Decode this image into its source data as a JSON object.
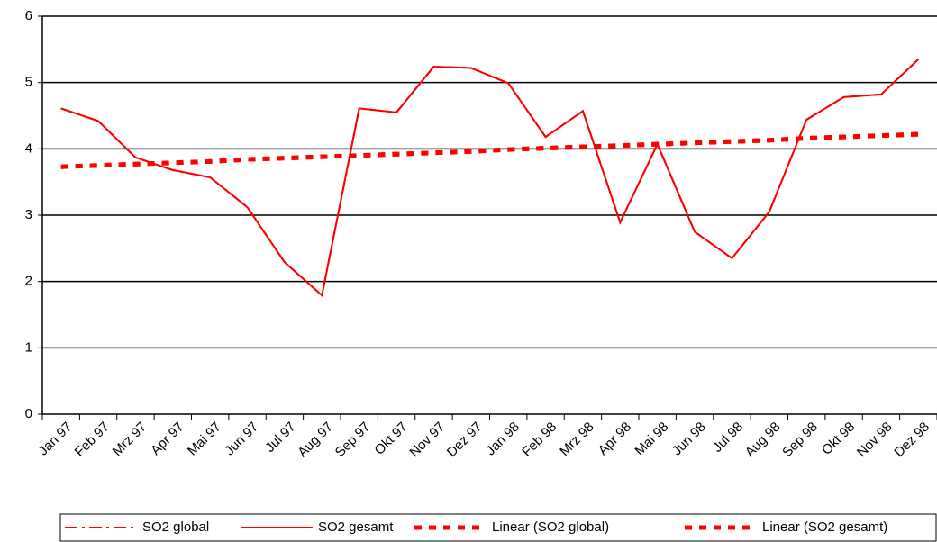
{
  "chart_data": {
    "type": "line",
    "categories": [
      "Jan 97",
      "Feb 97",
      "Mrz 97",
      "Apr 97",
      "Mai 97",
      "Jun 97",
      "Jul 97",
      "Aug 97",
      "Sep 97",
      "Okt 97",
      "Nov 97",
      "Dez 97",
      "Jan 98",
      "Feb 98",
      "Mrz 98",
      "Apr 98",
      "Mai 98",
      "Jun 98",
      "Jul 98",
      "Aug 98",
      "Sep 98",
      "Okt 98",
      "Nov 98",
      "Dez 98"
    ],
    "series": [
      {
        "name": "SO2 global",
        "color": "#ff0000",
        "style": "dashdot",
        "values": [
          4.61,
          4.42,
          3.87,
          3.68,
          3.57,
          3.12,
          2.29,
          1.79,
          4.61,
          4.55,
          5.24,
          5.22,
          4.99,
          4.18,
          4.57,
          2.89,
          4.07,
          2.75,
          2.35,
          3.05,
          4.44,
          4.78,
          4.82,
          5.35
        ]
      },
      {
        "name": "SO2 gesamt",
        "color": "#ff0000",
        "style": "solid",
        "values": [
          4.61,
          4.42,
          3.87,
          3.68,
          3.57,
          3.12,
          2.29,
          1.79,
          4.61,
          4.55,
          5.24,
          5.22,
          4.99,
          4.18,
          4.57,
          2.89,
          4.07,
          2.75,
          2.35,
          3.05,
          4.44,
          4.78,
          4.82,
          5.35
        ]
      },
      {
        "name": "Linear (SO2 global)",
        "color": "#ff0000",
        "style": "dash",
        "values": [
          3.73,
          3.75,
          3.77,
          3.79,
          3.81,
          3.84,
          3.86,
          3.88,
          3.9,
          3.92,
          3.94,
          3.96,
          3.99,
          4.01,
          4.03,
          4.05,
          4.07,
          4.09,
          4.11,
          4.13,
          4.16,
          4.18,
          4.2,
          4.22
        ]
      },
      {
        "name": "Linear (SO2 gesamt)",
        "color": "#ff0000",
        "style": "dash",
        "values": [
          3.73,
          3.75,
          3.77,
          3.79,
          3.81,
          3.84,
          3.86,
          3.88,
          3.9,
          3.92,
          3.94,
          3.96,
          3.99,
          4.01,
          4.03,
          4.05,
          4.07,
          4.09,
          4.11,
          4.13,
          4.16,
          4.18,
          4.2,
          4.22
        ]
      }
    ],
    "ylim": [
      0,
      6
    ],
    "yticks": [
      0,
      1,
      2,
      3,
      4,
      5,
      6
    ],
    "grid": true,
    "legend": "bottom"
  }
}
